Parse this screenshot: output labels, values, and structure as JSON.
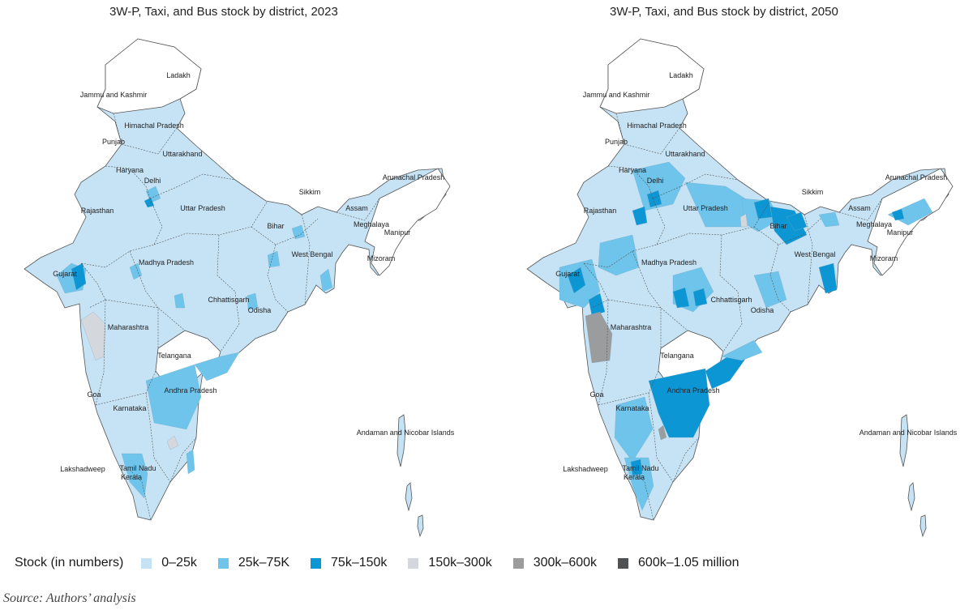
{
  "maps": [
    {
      "title": "3W-P, Taxi, and Bus stock by district, 2023",
      "labels": [
        "Ladakh",
        "Jammu and Kashmir",
        "Himachal Pradesh",
        "Punjab",
        "Uttarakhand",
        "Haryana",
        "Delhi",
        "Arunachal Pradesh",
        "Sikkim",
        "Rajasthan",
        "Uttar Pradesh",
        "Assam",
        "Meghalaya",
        "Bihar",
        "Manipur",
        "Mizoram",
        "West Bengal",
        "Gujarat",
        "Madhya Pradesh",
        "Chhattisgarh",
        "Odisha",
        "Maharashtra",
        "Telangana",
        "Andhra Pradesh",
        "Goa",
        "Karnataka",
        "Andaman and Nicobar Islands",
        "Lakshadweep",
        "Tamil Nadu",
        "Kerala"
      ]
    },
    {
      "title": "3W-P, Taxi, and Bus stock by district, 2050",
      "labels": [
        "Ladakh",
        "Jammu and Kashmir",
        "Himachal Pradesh",
        "Punjab",
        "Uttarakhand",
        "Haryana",
        "Delhi",
        "Arunachal Pradesh",
        "Sikkim",
        "Rajasthan",
        "Uttar Pradesh",
        "Assam",
        "Meghalaya",
        "Bihar",
        "Manipur",
        "Mizoram",
        "West Bengal",
        "Gujarat",
        "Madhya Pradesh",
        "Chhattisgarh",
        "Odisha",
        "Maharashtra",
        "Telangana",
        "Andhra Pradesh",
        "Goa",
        "Karnataka",
        "Andaman and Nicobar Islands",
        "Lakshadweep",
        "Tamil Nadu",
        "Kerala"
      ]
    }
  ],
  "legend": {
    "title": "Stock (in numbers)",
    "items": [
      {
        "label": "0–25k",
        "color": "#c6e3f5"
      },
      {
        "label": "25k–75K",
        "color": "#6ec4ea"
      },
      {
        "label": "75k–150k",
        "color": "#0c96d4"
      },
      {
        "label": "150k–300k",
        "color": "#d4d7db"
      },
      {
        "label": "300k–600k",
        "color": "#9a9c9e"
      },
      {
        "label": "600k–1.05 million",
        "color": "#4f5153"
      }
    ]
  },
  "colors": {
    "none": "#ffffff",
    "border": "#555555"
  },
  "source": "Source: Authors’ analysis"
}
